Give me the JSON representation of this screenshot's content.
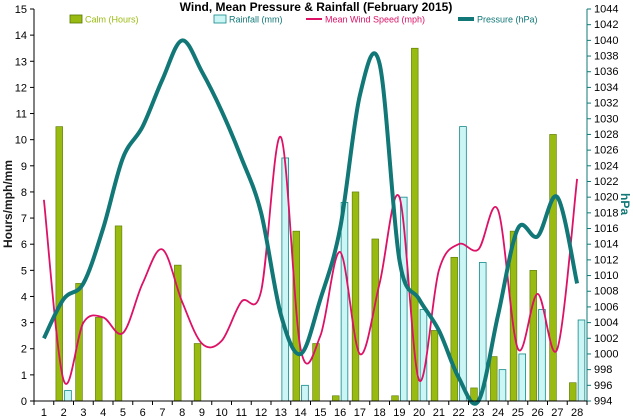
{
  "chart_data": {
    "type": "bar",
    "title": "Wind, Mean Pressure & Rainfall (February 2015)",
    "ylabel": "Hours/mph/mm",
    "y2label": "hPa",
    "categories": [
      "1",
      "2",
      "3",
      "4",
      "5",
      "6",
      "7",
      "8",
      "9",
      "10",
      "11",
      "12",
      "13",
      "14",
      "15",
      "16",
      "17",
      "18",
      "19",
      "20",
      "21",
      "22",
      "23",
      "24",
      "25",
      "26",
      "27",
      "28"
    ],
    "ylim": [
      0,
      15
    ],
    "y2lim": [
      994,
      1044
    ],
    "grid": false,
    "legend_position": "top",
    "series": [
      {
        "name": "Calm (Hours)",
        "type": "bar",
        "axis": "left",
        "color": "#99bb11",
        "values": [
          0,
          10.5,
          4.5,
          3.2,
          6.7,
          0,
          0,
          5.2,
          2.2,
          0,
          0,
          0,
          0,
          6.5,
          2.2,
          0.2,
          8.0,
          6.2,
          0.2,
          13.5,
          2.7,
          5.5,
          0.5,
          1.7,
          6.5,
          5.0,
          10.2,
          0.7
        ]
      },
      {
        "name": "Rainfall (mm)",
        "type": "bar",
        "axis": "left",
        "color": "#ccf5f5",
        "values": [
          0,
          0.4,
          0,
          0,
          0,
          0,
          0,
          0,
          0,
          0,
          0,
          0,
          9.3,
          0.6,
          0,
          7.6,
          0,
          0,
          7.8,
          3.5,
          0,
          10.5,
          5.3,
          1.2,
          1.8,
          3.5,
          0,
          3.1
        ]
      },
      {
        "name": "Mean Wind Speed (mph)",
        "type": "line",
        "axis": "left",
        "color": "#dd1166",
        "values": [
          7.7,
          0.8,
          3.0,
          3.2,
          2.6,
          4.5,
          5.8,
          3.8,
          2.2,
          2.3,
          3.8,
          4.2,
          10.1,
          2.0,
          2.5,
          5.7,
          1.8,
          4.5,
          7.8,
          0.8,
          5.0,
          6.0,
          5.8,
          7.3,
          2.0,
          4.1,
          2.0,
          8.5
        ]
      },
      {
        "name": "Pressure (hPa)",
        "type": "line",
        "axis": "right",
        "color": "#117777",
        "values": [
          1002,
          1007,
          1009,
          1016,
          1025,
          1029,
          1035,
          1040,
          1036,
          1031,
          1025,
          1018,
          1005,
          1000,
          1007,
          1016,
          1033,
          1037,
          1012,
          1007,
          1003,
          997,
          994,
          1005,
          1016,
          1015,
          1020,
          1009
        ]
      }
    ]
  }
}
